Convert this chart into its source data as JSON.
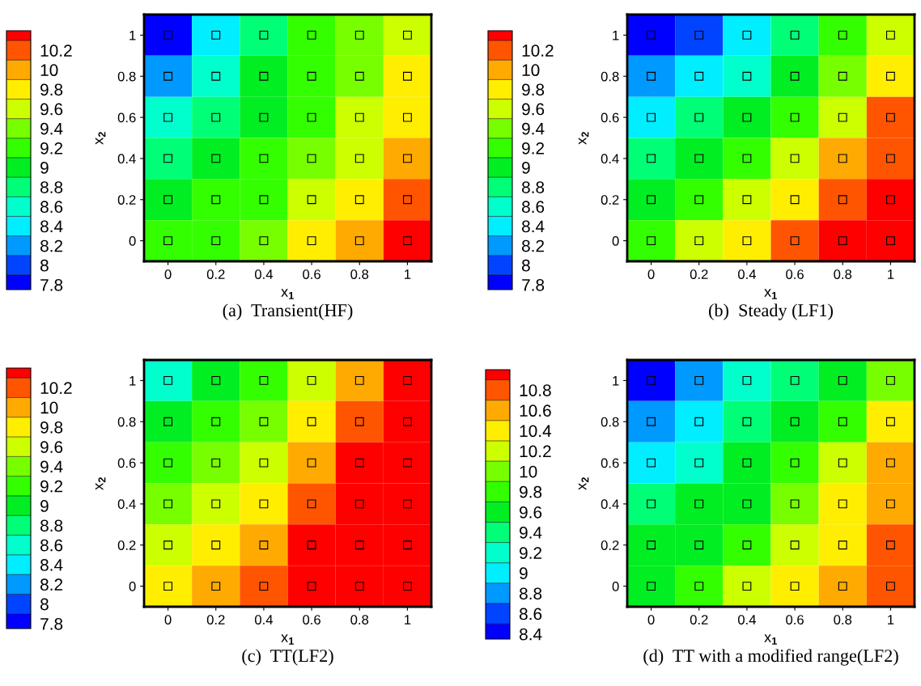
{
  "chart_data": [
    {
      "type": "heatmap",
      "title": "(a)  Transient(HF)",
      "xlabel": "x$_{1}$",
      "ylabel": "x$_{2}$",
      "x": [
        0,
        0.2,
        0.4,
        0.6,
        0.8,
        1
      ],
      "y": [
        1,
        0.8,
        0.6,
        0.4,
        0.2,
        0
      ],
      "xlim": [
        -0.1,
        1.1
      ],
      "ylim": [
        -0.1,
        1.1
      ],
      "xticks": [
        0,
        0.2,
        0.4,
        0.6,
        0.8,
        1
      ],
      "yticks": [
        0,
        0.2,
        0.4,
        0.6,
        0.8,
        1
      ],
      "cells": [
        [
          7.8,
          8.3,
          8.8,
          9.1,
          9.4,
          9.6
        ],
        [
          8.2,
          8.5,
          8.9,
          9.1,
          9.4,
          9.7
        ],
        [
          8.5,
          8.8,
          9.0,
          9.2,
          9.5,
          9.8
        ],
        [
          8.8,
          9.0,
          9.1,
          9.3,
          9.6,
          9.9
        ],
        [
          9.0,
          9.1,
          9.2,
          9.5,
          9.8,
          10.1
        ],
        [
          9.1,
          9.2,
          9.3,
          9.7,
          10.0,
          10.3
        ]
      ],
      "clim": [
        7.75,
        10.4
      ],
      "cticks": [
        7.8,
        8,
        8.2,
        8.4,
        8.6,
        8.8,
        9,
        9.2,
        9.4,
        9.6,
        9.8,
        10,
        10.2
      ],
      "colors": [
        "#0000ff",
        "#0044ff",
        "#0099ff",
        "#00eeff",
        "#00ffcc",
        "#00ff77",
        "#00ee22",
        "#33ff00",
        "#77ff00",
        "#ccff00",
        "#ffee00",
        "#ffaa00",
        "#ff5500",
        "#ff0000"
      ],
      "series": [
        {
          "type": "scatter",
          "marker": "square",
          "color": "#000000",
          "x": [
            0,
            0.2,
            0.4,
            0.6,
            0.8,
            1,
            0,
            0.2,
            0.4,
            0.6,
            0.8,
            1,
            0,
            0.2,
            0.4,
            0.6,
            0.8,
            1,
            0,
            0.2,
            0.4,
            0.6,
            0.8,
            1,
            0,
            0.2,
            0.4,
            0.6,
            0.8,
            1,
            0,
            0.2,
            0.4,
            0.6,
            0.8,
            1
          ],
          "values": [
            0,
            0,
            0,
            0,
            0,
            0,
            0.2,
            0.2,
            0.2,
            0.2,
            0.2,
            0.2,
            0.4,
            0.4,
            0.4,
            0.4,
            0.4,
            0.4,
            0.6,
            0.6,
            0.6,
            0.6,
            0.6,
            0.6,
            0.8,
            0.8,
            0.8,
            0.8,
            0.8,
            0.8,
            1,
            1,
            1,
            1,
            1,
            1
          ]
        }
      ]
    },
    {
      "type": "heatmap",
      "title": "(b)  Steady (LF1)",
      "xlabel": "x$_{1}$",
      "ylabel": "x$_{2}$",
      "x": [
        0,
        0.2,
        0.4,
        0.6,
        0.8,
        1
      ],
      "y": [
        1,
        0.8,
        0.6,
        0.4,
        0.2,
        0
      ],
      "xlim": [
        -0.1,
        1.1
      ],
      "ylim": [
        -0.1,
        1.1
      ],
      "xticks": [
        0,
        0.2,
        0.4,
        0.6,
        0.8,
        1
      ],
      "yticks": [
        0,
        0.2,
        0.4,
        0.6,
        0.8,
        1
      ],
      "cells": [
        [
          7.8,
          8.0,
          8.3,
          8.7,
          9.1,
          9.5
        ],
        [
          8.1,
          8.3,
          8.6,
          9.0,
          9.3,
          9.8
        ],
        [
          8.4,
          8.7,
          9.0,
          9.2,
          9.6,
          10.1
        ],
        [
          8.7,
          9.0,
          9.2,
          9.5,
          9.9,
          10.2
        ],
        [
          9.0,
          9.2,
          9.5,
          9.8,
          10.1,
          10.3
        ],
        [
          9.2,
          9.5,
          9.8,
          10.1,
          10.3,
          10.4
        ]
      ],
      "clim": [
        7.75,
        10.4
      ],
      "cticks": [
        7.8,
        8,
        8.2,
        8.4,
        8.6,
        8.8,
        9,
        9.2,
        9.4,
        9.6,
        9.8,
        10,
        10.2
      ],
      "colors": [
        "#0000ff",
        "#0044ff",
        "#0099ff",
        "#00eeff",
        "#00ffcc",
        "#00ff77",
        "#00ee22",
        "#33ff00",
        "#77ff00",
        "#ccff00",
        "#ffee00",
        "#ffaa00",
        "#ff5500",
        "#ff0000"
      ],
      "series": [
        {
          "type": "scatter",
          "marker": "square",
          "color": "#000000",
          "x": [
            0,
            0.2,
            0.4,
            0.6,
            0.8,
            1,
            0,
            0.2,
            0.4,
            0.6,
            0.8,
            1,
            0,
            0.2,
            0.4,
            0.6,
            0.8,
            1,
            0,
            0.2,
            0.4,
            0.6,
            0.8,
            1,
            0,
            0.2,
            0.4,
            0.6,
            0.8,
            1,
            0,
            0.2,
            0.4,
            0.6,
            0.8,
            1
          ],
          "values": [
            0,
            0,
            0,
            0,
            0,
            0,
            0.2,
            0.2,
            0.2,
            0.2,
            0.2,
            0.2,
            0.4,
            0.4,
            0.4,
            0.4,
            0.4,
            0.4,
            0.6,
            0.6,
            0.6,
            0.6,
            0.6,
            0.6,
            0.8,
            0.8,
            0.8,
            0.8,
            0.8,
            0.8,
            1,
            1,
            1,
            1,
            1,
            1
          ]
        }
      ]
    },
    {
      "type": "heatmap",
      "title": "(c)  TT(LF2)",
      "xlabel": "x$_{1}$",
      "ylabel": "x$_{2}$",
      "x": [
        0,
        0.2,
        0.4,
        0.6,
        0.8,
        1
      ],
      "y": [
        1,
        0.8,
        0.6,
        0.4,
        0.2,
        0
      ],
      "xlim": [
        -0.1,
        1.1
      ],
      "ylim": [
        -0.1,
        1.1
      ],
      "xticks": [
        0,
        0.2,
        0.4,
        0.6,
        0.8,
        1
      ],
      "yticks": [
        0,
        0.2,
        0.4,
        0.6,
        0.8,
        1
      ],
      "cells": [
        [
          8.5,
          9.0,
          9.2,
          9.5,
          9.9,
          10.3
        ],
        [
          8.9,
          9.1,
          9.3,
          9.7,
          10.1,
          10.4
        ],
        [
          9.1,
          9.3,
          9.6,
          9.9,
          10.3,
          10.4
        ],
        [
          9.3,
          9.5,
          9.8,
          10.1,
          10.4,
          10.4
        ],
        [
          9.5,
          9.7,
          10.0,
          10.3,
          10.4,
          10.4
        ],
        [
          9.7,
          9.9,
          10.1,
          10.4,
          10.4,
          10.4
        ]
      ],
      "clim": [
        7.75,
        10.4
      ],
      "cticks": [
        7.8,
        8,
        8.2,
        8.4,
        8.6,
        8.8,
        9,
        9.2,
        9.4,
        9.6,
        9.8,
        10,
        10.2
      ],
      "colors": [
        "#0000ff",
        "#0044ff",
        "#0099ff",
        "#00eeff",
        "#00ffcc",
        "#00ff77",
        "#00ee22",
        "#33ff00",
        "#77ff00",
        "#ccff00",
        "#ffee00",
        "#ffaa00",
        "#ff5500",
        "#ff0000"
      ],
      "series": [
        {
          "type": "scatter",
          "marker": "square",
          "color": "#000000",
          "x": [
            0,
            0.2,
            0.4,
            0.6,
            0.8,
            1,
            0,
            0.2,
            0.4,
            0.6,
            0.8,
            1,
            0,
            0.2,
            0.4,
            0.6,
            0.8,
            1,
            0,
            0.2,
            0.4,
            0.6,
            0.8,
            1,
            0,
            0.2,
            0.4,
            0.6,
            0.8,
            1,
            0,
            0.2,
            0.4,
            0.6,
            0.8,
            1
          ],
          "values": [
            0,
            0,
            0,
            0,
            0,
            0,
            0.2,
            0.2,
            0.2,
            0.2,
            0.2,
            0.2,
            0.4,
            0.4,
            0.4,
            0.4,
            0.4,
            0.4,
            0.6,
            0.6,
            0.6,
            0.6,
            0.6,
            0.6,
            0.8,
            0.8,
            0.8,
            0.8,
            0.8,
            0.8,
            1,
            1,
            1,
            1,
            1,
            1
          ]
        }
      ]
    },
    {
      "type": "heatmap",
      "title": "(d)  TT with a modified range(LF2)",
      "xlabel": "x$_{1}$",
      "ylabel": "x$_{2}$",
      "x": [
        0,
        0.2,
        0.4,
        0.6,
        0.8,
        1
      ],
      "y": [
        1,
        0.8,
        0.6,
        0.4,
        0.2,
        0
      ],
      "xlim": [
        -0.1,
        1.1
      ],
      "ylim": [
        -0.1,
        1.1
      ],
      "xticks": [
        0,
        0.2,
        0.4,
        0.6,
        0.8,
        1
      ],
      "yticks": [
        0,
        0.2,
        0.4,
        0.6,
        0.8,
        1
      ],
      "cells": [
        [
          8.4,
          8.8,
          9.1,
          9.4,
          9.6,
          9.9
        ],
        [
          8.7,
          9.0,
          9.3,
          9.6,
          9.8,
          10.3
        ],
        [
          9.0,
          9.2,
          9.5,
          9.7,
          10.1,
          10.5
        ],
        [
          9.3,
          9.5,
          9.6,
          9.9,
          10.3,
          10.6
        ],
        [
          9.5,
          9.6,
          9.8,
          10.1,
          10.4,
          10.8
        ],
        [
          9.6,
          9.8,
          10.1,
          10.3,
          10.6,
          10.9
        ]
      ],
      "clim": [
        8.35,
        11.0
      ],
      "cticks": [
        8.4,
        8.6,
        8.8,
        9,
        9.2,
        9.4,
        9.6,
        9.8,
        10,
        10.2,
        10.4,
        10.6,
        10.8
      ],
      "colors": [
        "#0000ff",
        "#0044ff",
        "#0099ff",
        "#00eeff",
        "#00ffcc",
        "#00ff77",
        "#00ee22",
        "#33ff00",
        "#77ff00",
        "#ccff00",
        "#ffee00",
        "#ffaa00",
        "#ff5500",
        "#ff0000"
      ],
      "series": [
        {
          "type": "scatter",
          "marker": "square",
          "color": "#000000",
          "x": [
            0,
            0.2,
            0.4,
            0.6,
            0.8,
            1,
            0,
            0.2,
            0.4,
            0.6,
            0.8,
            1,
            0,
            0.2,
            0.4,
            0.6,
            0.8,
            1,
            0,
            0.2,
            0.4,
            0.6,
            0.8,
            1,
            0,
            0.2,
            0.4,
            0.6,
            0.8,
            1,
            0,
            0.2,
            0.4,
            0.6,
            0.8,
            1
          ],
          "values": [
            0,
            0,
            0,
            0,
            0,
            0,
            0.2,
            0.2,
            0.2,
            0.2,
            0.2,
            0.2,
            0.4,
            0.4,
            0.4,
            0.4,
            0.4,
            0.4,
            0.6,
            0.6,
            0.6,
            0.6,
            0.6,
            0.6,
            0.8,
            0.8,
            0.8,
            0.8,
            0.8,
            0.8,
            1,
            1,
            1,
            1,
            1,
            1
          ]
        }
      ]
    }
  ]
}
